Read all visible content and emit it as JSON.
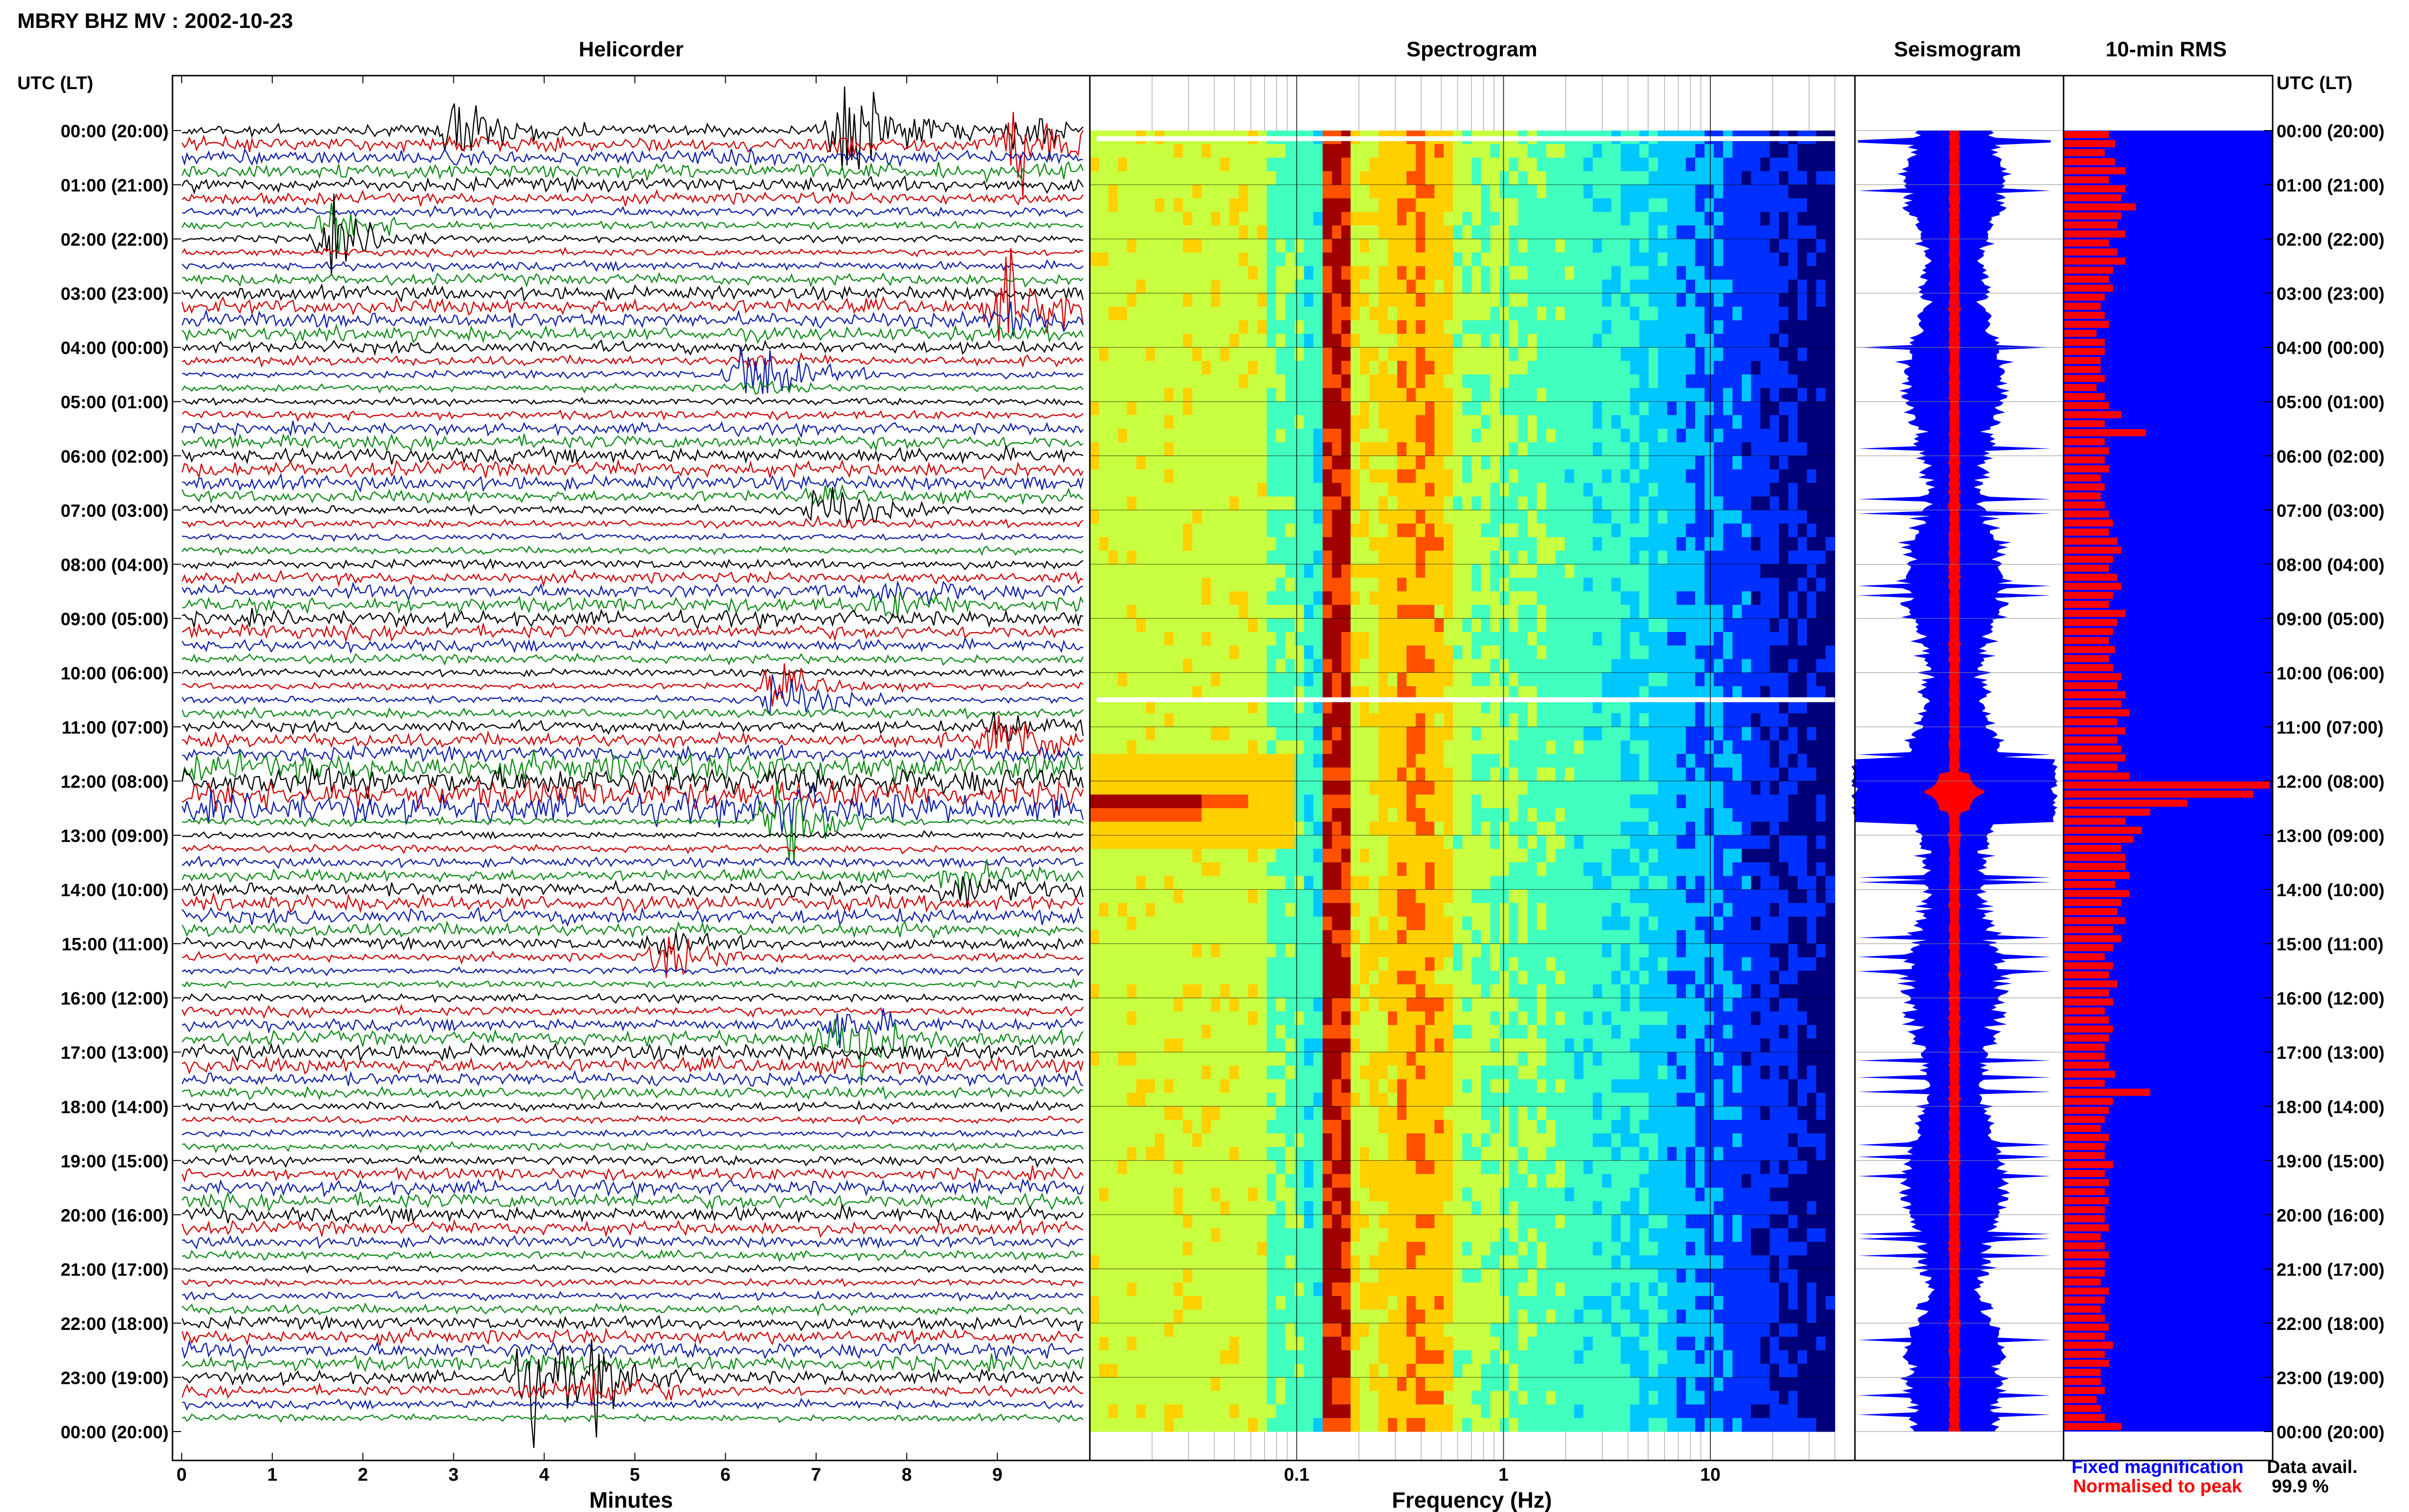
{
  "chart_data": {
    "type": "heatmap",
    "title": "MBRY BHZ MV : 2002-10-23",
    "panels": {
      "helicorder": "Helicorder",
      "spectrogram": "Spectrogram",
      "seismogram": "Seismogram",
      "rms": "10-min RMS"
    },
    "row_axis_label": "UTC (LT)",
    "hour_labels": [
      "00:00 (20:00)",
      "01:00 (21:00)",
      "02:00 (22:00)",
      "03:00 (23:00)",
      "04:00 (00:00)",
      "05:00 (01:00)",
      "06:00 (02:00)",
      "07:00 (03:00)",
      "08:00 (04:00)",
      "09:00 (05:00)",
      "10:00 (06:00)",
      "11:00 (07:00)",
      "12:00 (08:00)",
      "13:00 (09:00)",
      "14:00 (10:00)",
      "15:00 (11:00)",
      "16:00 (12:00)",
      "17:00 (13:00)",
      "18:00 (14:00)",
      "19:00 (15:00)",
      "20:00 (16:00)",
      "21:00 (17:00)",
      "22:00 (18:00)",
      "23:00 (19:00)",
      "00:00 (20:00)"
    ],
    "helicorder": {
      "xlabel": "Minutes",
      "xlim": [
        0,
        10
      ],
      "ticks": [
        "0",
        "1",
        "2",
        "3",
        "4",
        "5",
        "6",
        "7",
        "8",
        "9"
      ],
      "trace_colors": [
        "#000000",
        "#d00000",
        "#0b1fa8",
        "#0a8a12"
      ],
      "events": [
        {
          "hour": 0.0,
          "minute": 7.3,
          "amp": 3.2,
          "color": "#0a8a12"
        },
        {
          "hour": 0.0,
          "minute": 3.0,
          "amp": 1.8,
          "color": "#0b1fa8"
        },
        {
          "hour": 0.2,
          "minute": 9.2,
          "amp": 2.6,
          "color": "#8b0000"
        },
        {
          "hour": 1.9,
          "minute": 1.6,
          "amp": 2.4,
          "color": "#0a8a12"
        },
        {
          "hour": 3.3,
          "minute": 9.1,
          "amp": 3.0,
          "color": "#000000"
        },
        {
          "hour": 4.5,
          "minute": 6.2,
          "amp": 2.0,
          "color": "#000000"
        },
        {
          "hour": 7.0,
          "minute": 7.0,
          "amp": 1.4,
          "color": "#0a8a12"
        },
        {
          "hour": 8.6,
          "minute": 7.8,
          "amp": 1.2,
          "color": "#000000"
        },
        {
          "hour": 10.4,
          "minute": 6.5,
          "amp": 2.2,
          "color": "#0a8a12"
        },
        {
          "hour": 11.2,
          "minute": 9.0,
          "amp": 2.4,
          "color": "#000000"
        },
        {
          "hour": 12.7,
          "minute": 6.5,
          "amp": 3.4,
          "color": "#000000"
        },
        {
          "hour": 13.9,
          "minute": 8.5,
          "amp": 1.6,
          "color": "#0b1fa8"
        },
        {
          "hour": 15.2,
          "minute": 5.3,
          "amp": 1.5,
          "color": "#0a8a12"
        },
        {
          "hour": 16.7,
          "minute": 7.2,
          "amp": 3.2,
          "color": "#8b0000"
        },
        {
          "hour": 23.0,
          "minute": 3.8,
          "amp": 2.6,
          "color": "#8b0000"
        },
        {
          "hour": 23.1,
          "minute": 4.5,
          "amp": 2.2,
          "color": "#8b0000"
        }
      ]
    },
    "spectrogram": {
      "xlabel": "Frequency (Hz)",
      "xscale": "log",
      "xlim": [
        0.01,
        50
      ],
      "ticks": [
        {
          "value": 0.1,
          "label": "0.1"
        },
        {
          "value": 1,
          "label": "1"
        },
        {
          "value": 10,
          "label": "10"
        }
      ],
      "colormap": [
        "#00007a",
        "#0030ff",
        "#00c8ff",
        "#40ffbf",
        "#c8ff40",
        "#ffd000",
        "#ff5000",
        "#a00000"
      ],
      "data_end_hz": 40,
      "dominant_bands_hz": [
        0.16,
        0.32,
        0.4
      ],
      "data_gaps_utc_hour": [
        0.15,
        10.5
      ],
      "transient_event": {
        "hour": 12.2,
        "freq_low_hz": 0.01,
        "freq_high_hz": 0.1
      }
    },
    "seismogram": {
      "fixed_color": "#0000ff",
      "normalised_color": "#ff0000",
      "event_hour": 12.2
    },
    "rms": {
      "bar_color": "#ff0000",
      "background_color": "#0000ff",
      "values": [
        0.22,
        0.25,
        0.2,
        0.25,
        0.3,
        0.22,
        0.3,
        0.28,
        0.35,
        0.28,
        0.26,
        0.3,
        0.22,
        0.26,
        0.3,
        0.24,
        0.22,
        0.24,
        0.2,
        0.18,
        0.2,
        0.22,
        0.16,
        0.2,
        0.2,
        0.18,
        0.18,
        0.2,
        0.16,
        0.2,
        0.22,
        0.28,
        0.2,
        0.4,
        0.2,
        0.22,
        0.2,
        0.22,
        0.18,
        0.2,
        0.18,
        0.2,
        0.22,
        0.24,
        0.22,
        0.26,
        0.28,
        0.24,
        0.22,
        0.26,
        0.28,
        0.24,
        0.22,
        0.3,
        0.26,
        0.24,
        0.22,
        0.25,
        0.22,
        0.24,
        0.28,
        0.26,
        0.3,
        0.28,
        0.32,
        0.26,
        0.3,
        0.26,
        0.28,
        0.3,
        0.26,
        0.32,
        1.0,
        0.92,
        0.6,
        0.42,
        0.3,
        0.38,
        0.34,
        0.28,
        0.3,
        0.3,
        0.32,
        0.25,
        0.32,
        0.28,
        0.26,
        0.3,
        0.24,
        0.28,
        0.24,
        0.2,
        0.24,
        0.22,
        0.26,
        0.22,
        0.24,
        0.2,
        0.22,
        0.24,
        0.22,
        0.2,
        0.2,
        0.22,
        0.25,
        0.2,
        0.42,
        0.24,
        0.22,
        0.2,
        0.18,
        0.22,
        0.2,
        0.2,
        0.24,
        0.2,
        0.22,
        0.2,
        0.22,
        0.2,
        0.2,
        0.22,
        0.18,
        0.2,
        0.22,
        0.2,
        0.2,
        0.18,
        0.22,
        0.2,
        0.18,
        0.2,
        0.22,
        0.2,
        0.24,
        0.2,
        0.22,
        0.18,
        0.18,
        0.2,
        0.16,
        0.18,
        0.2,
        0.28
      ]
    },
    "legend": {
      "fixed": "Fixed magnification",
      "normalised": "Normalised to peak",
      "availability_label": "Data avail.",
      "availability_value": "99.9 %"
    }
  }
}
